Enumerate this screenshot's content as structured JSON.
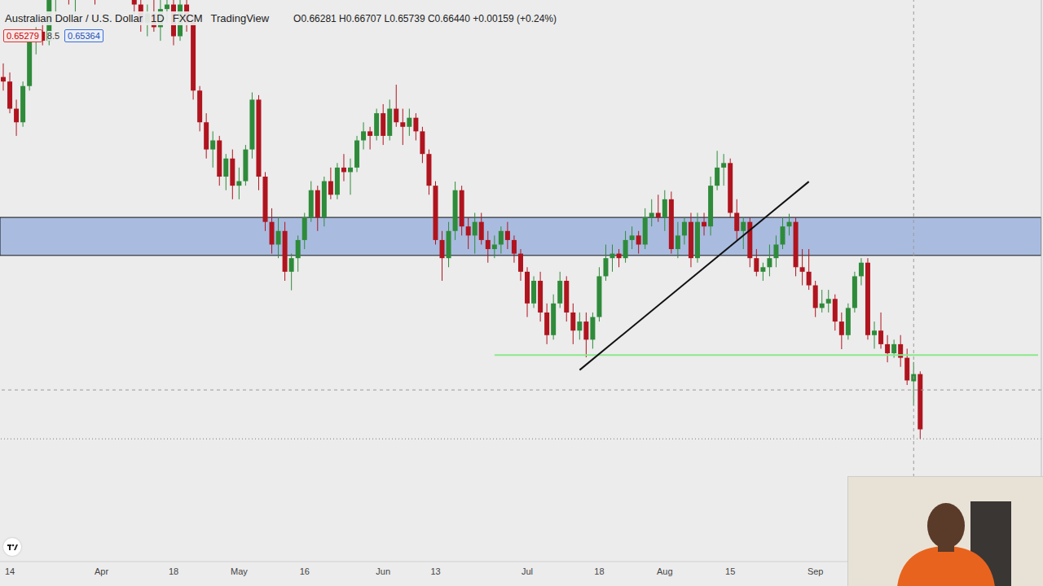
{
  "chart_data": {
    "type": "candlestick",
    "title": "Australian Dollar / U.S. Dollar",
    "interval": "1D",
    "source": "FXCM",
    "platform": "TradingView",
    "legend_text": "O0.66281 H0.66707 L0.65739 C0.66440 +0.00159 (+0.24%)",
    "badges": [
      "0.65279",
      "8.5",
      "0.65364"
    ],
    "categories": [
      null,
      "14",
      null,
      null,
      null,
      null,
      null,
      null,
      null,
      null,
      null,
      null,
      null,
      null,
      null,
      "Apr",
      null,
      null,
      null,
      null,
      null,
      null,
      null,
      null,
      null,
      null,
      "18",
      null,
      null,
      null,
      null,
      null,
      null,
      null,
      null,
      null,
      "May",
      null,
      null,
      null,
      null,
      null,
      null,
      null,
      null,
      null,
      "16",
      null,
      null,
      null,
      null,
      null,
      null,
      null,
      null,
      null,
      null,
      null,
      "Jun",
      null,
      null,
      null,
      null,
      null,
      null,
      null,
      "13",
      null,
      null,
      null,
      null,
      null,
      null,
      null,
      null,
      null,
      null,
      null,
      null,
      null,
      "Jul",
      null,
      null,
      null,
      null,
      null,
      null,
      null,
      null,
      null,
      null,
      "18",
      null,
      null,
      null,
      null,
      null,
      null,
      null,
      null,
      null,
      "Aug",
      null,
      null,
      null,
      null,
      null,
      null,
      null,
      null,
      null,
      "15",
      null,
      null,
      null,
      null,
      null,
      null,
      null,
      null,
      null,
      null,
      null,
      null,
      "Sep",
      null,
      null,
      null,
      null,
      null,
      null,
      null,
      null,
      null,
      null,
      null,
      null,
      null,
      null,
      null,
      null,
      null,
      null,
      null,
      null,
      null,
      null,
      null,
      null,
      null,
      null,
      null,
      null,
      null,
      null,
      null,
      null,
      null,
      null
    ],
    "ohlc": [
      [
        0.73,
        0.733,
        0.727,
        0.729
      ],
      [
        0.729,
        0.731,
        0.722,
        0.723
      ],
      [
        0.723,
        0.725,
        0.717,
        0.72
      ],
      [
        0.72,
        0.729,
        0.719,
        0.728
      ],
      [
        0.728,
        0.74,
        0.727,
        0.739
      ],
      [
        0.739,
        0.741,
        0.735,
        0.74
      ],
      [
        0.74,
        0.743,
        0.737,
        0.738
      ],
      [
        0.738,
        0.748,
        0.737,
        0.747
      ],
      [
        0.747,
        0.753,
        0.744,
        0.749
      ],
      [
        0.749,
        0.754,
        0.747,
        0.751
      ],
      [
        0.751,
        0.754,
        0.746,
        0.748
      ],
      [
        0.748,
        0.751,
        0.744,
        0.75
      ],
      [
        0.75,
        0.754,
        0.748,
        0.753
      ],
      [
        0.753,
        0.755,
        0.748,
        0.75
      ],
      [
        0.75,
        0.752,
        0.746,
        0.748
      ],
      [
        0.748,
        0.754,
        0.747,
        0.75
      ],
      [
        0.75,
        0.756,
        0.748,
        0.755
      ],
      [
        0.755,
        0.766,
        0.754,
        0.76
      ],
      [
        0.76,
        0.761,
        0.752,
        0.754
      ],
      [
        0.754,
        0.756,
        0.748,
        0.75
      ],
      [
        0.75,
        0.751,
        0.744,
        0.746
      ],
      [
        0.746,
        0.748,
        0.74,
        0.742
      ],
      [
        0.742,
        0.746,
        0.739,
        0.744
      ],
      [
        0.744,
        0.748,
        0.74,
        0.741
      ],
      [
        0.741,
        0.747,
        0.738,
        0.745
      ],
      [
        0.745,
        0.749,
        0.742,
        0.746
      ],
      [
        0.746,
        0.747,
        0.737,
        0.739
      ],
      [
        0.739,
        0.748,
        0.738,
        0.746
      ],
      [
        0.746,
        0.747,
        0.74,
        0.742
      ],
      [
        0.742,
        0.744,
        0.725,
        0.727
      ],
      [
        0.727,
        0.728,
        0.718,
        0.72
      ],
      [
        0.72,
        0.722,
        0.712,
        0.714
      ],
      [
        0.714,
        0.718,
        0.71,
        0.716
      ],
      [
        0.716,
        0.717,
        0.706,
        0.708
      ],
      [
        0.708,
        0.713,
        0.705,
        0.712
      ],
      [
        0.712,
        0.714,
        0.703,
        0.706
      ],
      [
        0.706,
        0.71,
        0.703,
        0.707
      ],
      [
        0.707,
        0.715,
        0.706,
        0.714
      ],
      [
        0.714,
        0.7266,
        0.712,
        0.725
      ],
      [
        0.725,
        0.726,
        0.705,
        0.708
      ],
      [
        0.708,
        0.709,
        0.696,
        0.698
      ],
      [
        0.698,
        0.701,
        0.691,
        0.693
      ],
      [
        0.693,
        0.699,
        0.69,
        0.696
      ],
      [
        0.696,
        0.698,
        0.685,
        0.687
      ],
      [
        0.687,
        0.691,
        0.6829,
        0.69
      ],
      [
        0.69,
        0.695,
        0.687,
        0.694
      ],
      [
        0.694,
        0.7,
        0.692,
        0.699
      ],
      [
        0.699,
        0.707,
        0.698,
        0.705
      ],
      [
        0.705,
        0.706,
        0.696,
        0.699
      ],
      [
        0.699,
        0.708,
        0.697,
        0.707
      ],
      [
        0.707,
        0.71,
        0.703,
        0.704
      ],
      [
        0.704,
        0.711,
        0.703,
        0.71
      ],
      [
        0.71,
        0.713,
        0.707,
        0.709
      ],
      [
        0.709,
        0.712,
        0.704,
        0.71
      ],
      [
        0.71,
        0.717,
        0.709,
        0.716
      ],
      [
        0.716,
        0.72,
        0.714,
        0.718
      ],
      [
        0.718,
        0.719,
        0.714,
        0.717
      ],
      [
        0.717,
        0.723,
        0.716,
        0.722
      ],
      [
        0.722,
        0.724,
        0.715,
        0.717
      ],
      [
        0.717,
        0.725,
        0.716,
        0.723
      ],
      [
        0.723,
        0.7283,
        0.719,
        0.72
      ],
      [
        0.72,
        0.723,
        0.715,
        0.719
      ],
      [
        0.719,
        0.723,
        0.717,
        0.721
      ],
      [
        0.721,
        0.722,
        0.716,
        0.718
      ],
      [
        0.718,
        0.719,
        0.711,
        0.713
      ],
      [
        0.713,
        0.714,
        0.704,
        0.706
      ],
      [
        0.706,
        0.707,
        0.693,
        0.694
      ],
      [
        0.694,
        0.696,
        0.685,
        0.69
      ],
      [
        0.69,
        0.698,
        0.688,
        0.696
      ],
      [
        0.696,
        0.7069,
        0.694,
        0.705
      ],
      [
        0.705,
        0.706,
        0.695,
        0.697
      ],
      [
        0.697,
        0.699,
        0.692,
        0.695
      ],
      [
        0.695,
        0.7,
        0.691,
        0.698
      ],
      [
        0.698,
        0.7,
        0.693,
        0.694
      ],
      [
        0.694,
        0.696,
        0.689,
        0.692
      ],
      [
        0.692,
        0.695,
        0.69,
        0.693
      ],
      [
        0.693,
        0.697,
        0.691,
        0.696
      ],
      [
        0.696,
        0.698,
        0.692,
        0.694
      ],
      [
        0.694,
        0.695,
        0.689,
        0.691
      ],
      [
        0.691,
        0.692,
        0.685,
        0.687
      ],
      [
        0.687,
        0.688,
        0.677,
        0.68
      ],
      [
        0.68,
        0.686,
        0.679,
        0.685
      ],
      [
        0.685,
        0.687,
        0.676,
        0.678
      ],
      [
        0.678,
        0.68,
        0.671,
        0.673
      ],
      [
        0.673,
        0.682,
        0.672,
        0.68
      ],
      [
        0.68,
        0.687,
        0.679,
        0.685
      ],
      [
        0.685,
        0.686,
        0.676,
        0.678
      ],
      [
        0.678,
        0.68,
        0.671,
        0.674
      ],
      [
        0.674,
        0.678,
        0.672,
        0.676
      ],
      [
        0.676,
        0.678,
        0.6681,
        0.672
      ],
      [
        0.672,
        0.678,
        0.67,
        0.677
      ],
      [
        0.677,
        0.688,
        0.676,
        0.686
      ],
      [
        0.686,
        0.693,
        0.685,
        0.69
      ],
      [
        0.69,
        0.693,
        0.687,
        0.691
      ],
      [
        0.691,
        0.692,
        0.688,
        0.69
      ],
      [
        0.69,
        0.696,
        0.689,
        0.694
      ],
      [
        0.694,
        0.697,
        0.692,
        0.695
      ],
      [
        0.695,
        0.696,
        0.691,
        0.693
      ],
      [
        0.693,
        0.701,
        0.692,
        0.699
      ],
      [
        0.699,
        0.703,
        0.697,
        0.7
      ],
      [
        0.7,
        0.704,
        0.698,
        0.699
      ],
      [
        0.699,
        0.705,
        0.696,
        0.703
      ],
      [
        0.703,
        0.7047,
        0.691,
        0.692
      ],
      [
        0.692,
        0.698,
        0.69,
        0.695
      ],
      [
        0.695,
        0.699,
        0.693,
        0.698
      ],
      [
        0.698,
        0.7,
        0.688,
        0.69
      ],
      [
        0.69,
        0.7,
        0.689,
        0.698
      ],
      [
        0.698,
        0.7,
        0.695,
        0.697
      ],
      [
        0.697,
        0.708,
        0.695,
        0.706
      ],
      [
        0.706,
        0.7137,
        0.705,
        0.71
      ],
      [
        0.71,
        0.713,
        0.706,
        0.711
      ],
      [
        0.711,
        0.712,
        0.699,
        0.7
      ],
      [
        0.7,
        0.703,
        0.694,
        0.696
      ],
      [
        0.696,
        0.699,
        0.692,
        0.698
      ],
      [
        0.698,
        0.699,
        0.688,
        0.69
      ],
      [
        0.69,
        0.692,
        0.686,
        0.687
      ],
      [
        0.687,
        0.689,
        0.685,
        0.688
      ],
      [
        0.688,
        0.693,
        0.686,
        0.69
      ],
      [
        0.69,
        0.695,
        0.688,
        0.693
      ],
      [
        0.693,
        0.699,
        0.692,
        0.697
      ],
      [
        0.697,
        0.6998,
        0.695,
        0.698
      ],
      [
        0.698,
        0.699,
        0.686,
        0.688
      ],
      [
        0.688,
        0.692,
        0.684,
        0.687
      ],
      [
        0.687,
        0.692,
        0.683,
        0.684
      ],
      [
        0.684,
        0.685,
        0.677,
        0.679
      ],
      [
        0.679,
        0.683,
        0.678,
        0.68
      ],
      [
        0.68,
        0.683,
        0.678,
        0.681
      ],
      [
        0.681,
        0.682,
        0.674,
        0.676
      ],
      [
        0.676,
        0.678,
        0.6699,
        0.673
      ],
      [
        0.673,
        0.68,
        0.672,
        0.679
      ],
      [
        0.679,
        0.687,
        0.678,
        0.686
      ],
      [
        0.686,
        0.69,
        0.684,
        0.689
      ],
      [
        0.689,
        0.69,
        0.672,
        0.673
      ],
      [
        0.673,
        0.676,
        0.67,
        0.674
      ],
      [
        0.674,
        0.678,
        0.67,
        0.671
      ],
      [
        0.671,
        0.673,
        0.667,
        0.669
      ],
      [
        0.669,
        0.672,
        0.668,
        0.671
      ],
      [
        0.671,
        0.673,
        0.666,
        0.668
      ],
      [
        0.668,
        0.67,
        0.662,
        0.663
      ],
      [
        0.66281,
        0.66707,
        0.65739,
        0.6644
      ],
      [
        0.6644,
        0.665,
        0.6501,
        0.6522
      ],
      null,
      null,
      null,
      null,
      null,
      null,
      null,
      null,
      null,
      null,
      null,
      null,
      null,
      null,
      null,
      null,
      null,
      null
    ],
    "ylim": [
      0.623,
      0.747
    ],
    "tick_labels": "x",
    "grid": false,
    "zone": [
      0.6906,
      0.699
    ],
    "support": {
      "y": 0.6686,
      "x": [
        75,
        158
      ]
    },
    "trendline": {
      "x": [
        88,
        123
      ],
      "y": [
        0.6653,
        0.7069
      ]
    },
    "crosshair": {
      "x": 139,
      "y": 0.6609
    },
    "price_line": 0.6501
  }
}
